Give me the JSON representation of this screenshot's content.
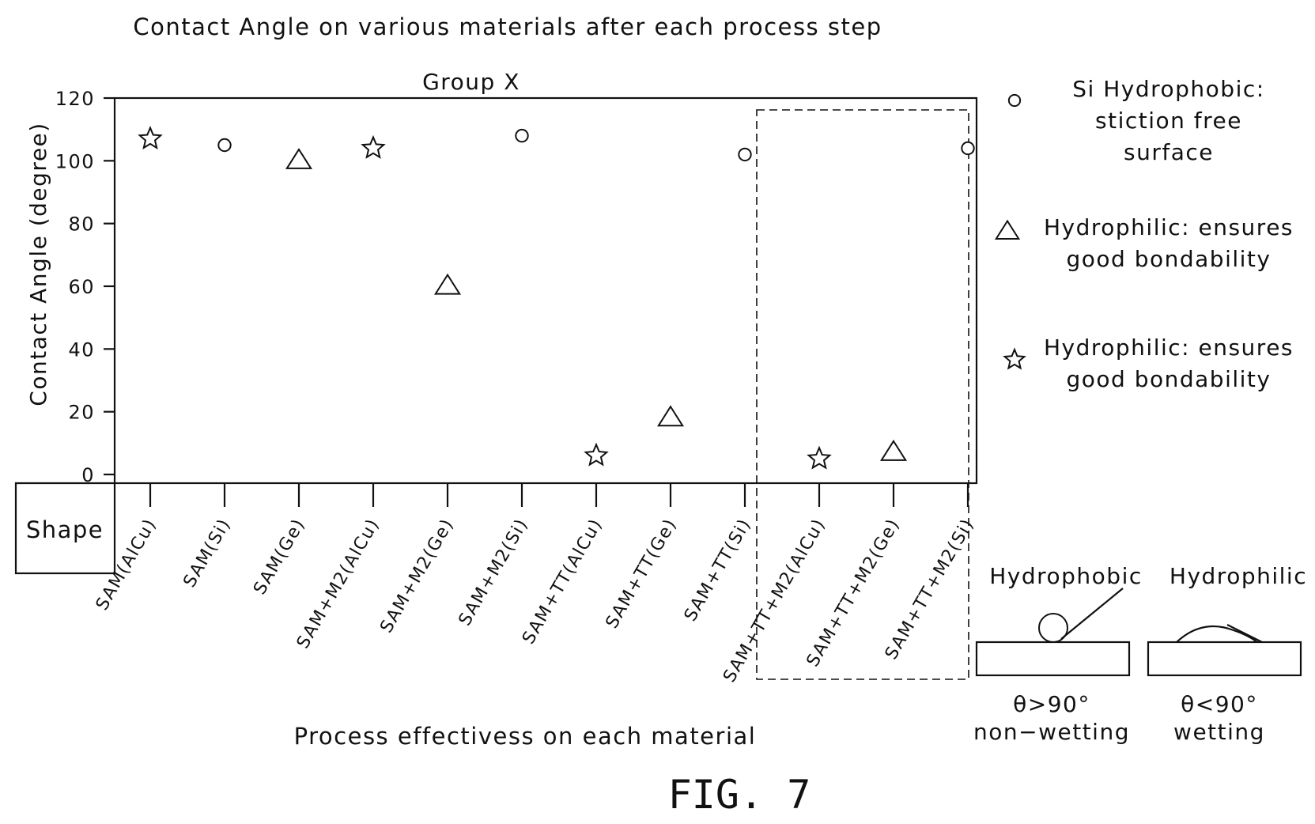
{
  "chart_data": {
    "type": "scatter",
    "title": "Contact Angle on various materials after each process step",
    "subtitle": "Group X",
    "xlabel": "Process effectivess on each material",
    "ylabel": "Contact Angle (degree)",
    "row_label": "Shape",
    "ylim": [
      0,
      120
    ],
    "yticks": [
      "120",
      "100",
      "80",
      "60",
      "40",
      "20",
      "0"
    ],
    "categories": [
      "SAM(AlCu)",
      "SAM(Si)",
      "SAM(Ge)",
      "SAM+M2(AlCu)",
      "SAM+M2(Ge)",
      "SAM+M2(Si)",
      "SAM+TT(AlCu)",
      "SAM+TT(Ge)",
      "SAM+TT(Si)",
      "SAM+TT+M2(AlCu)",
      "SAM+TT+M2(Ge)",
      "SAM+TT+M2(Si)"
    ],
    "points": [
      {
        "category": "SAM(AlCu)",
        "y": 107,
        "marker": "star"
      },
      {
        "category": "SAM(Si)",
        "y": 105,
        "marker": "circle"
      },
      {
        "category": "SAM(Ge)",
        "y": 100,
        "marker": "triangle"
      },
      {
        "category": "SAM+M2(AlCu)",
        "y": 104,
        "marker": "star"
      },
      {
        "category": "SAM+M2(Ge)",
        "y": 60,
        "marker": "triangle"
      },
      {
        "category": "SAM+M2(Si)",
        "y": 108,
        "marker": "circle"
      },
      {
        "category": "SAM+TT(AlCu)",
        "y": 6,
        "marker": "star"
      },
      {
        "category": "SAM+TT(Ge)",
        "y": 18,
        "marker": "triangle"
      },
      {
        "category": "SAM+TT(Si)",
        "y": 102,
        "marker": "circle"
      },
      {
        "category": "SAM+TT+M2(AlCu)",
        "y": 5,
        "marker": "star"
      },
      {
        "category": "SAM+TT+M2(Ge)",
        "y": 7,
        "marker": "triangle"
      },
      {
        "category": "SAM+TT+M2(Si)",
        "y": 104,
        "marker": "circle"
      }
    ],
    "highlighted_categories": [
      "SAM+TT+M2(AlCu)",
      "SAM+TT+M2(Ge)",
      "SAM+TT+M2(Si)"
    ],
    "legend": [
      {
        "marker": "circle",
        "lines": [
          "Si Hydrophobic:",
          "stiction free",
          "surface"
        ]
      },
      {
        "marker": "triangle",
        "lines": [
          "Hydrophilic: ensures",
          "good bondability"
        ]
      },
      {
        "marker": "star",
        "lines": [
          "Hydrophilic: ensures",
          "good bondability"
        ]
      }
    ],
    "legend_position": "right",
    "grid": false
  },
  "inset": {
    "hydrophobic": {
      "title": "Hydrophobic",
      "condition": "θ>90°",
      "caption": "non−wetting"
    },
    "hydrophilic": {
      "title": "Hydrophilic",
      "condition": "θ<90°",
      "caption": "wetting"
    }
  },
  "figure_label": "FIG. 7"
}
